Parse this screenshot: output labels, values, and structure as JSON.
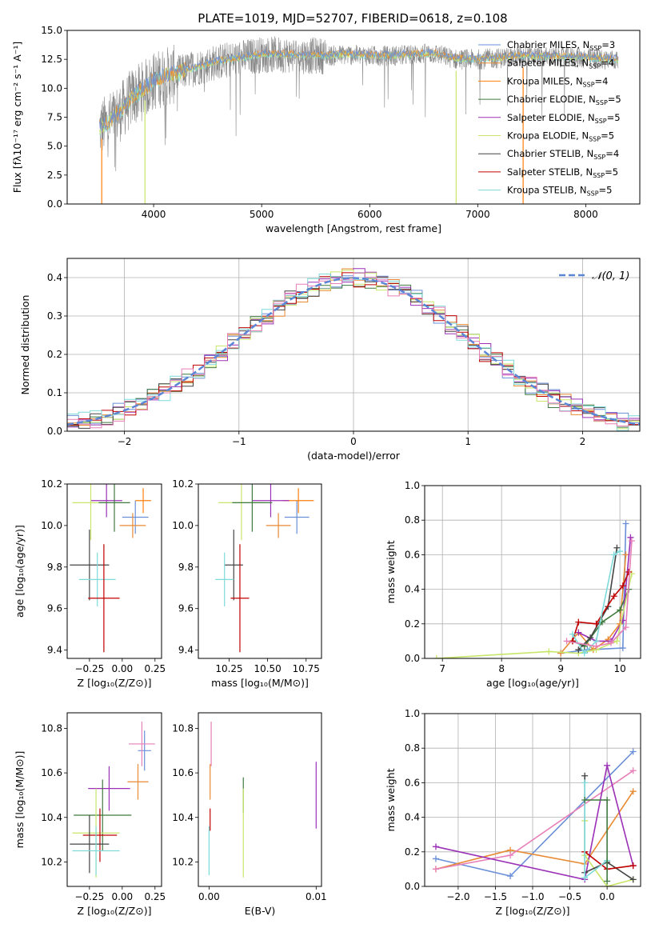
{
  "figure": {
    "title": "PLATE=1019, MJD=52707, FIBERID=0618, z=0.108"
  },
  "series_colors": {
    "Chabrier MILES": "#6a8fd8",
    "Salpeter MILES": "#e88a33",
    "Kroupa MILES": "#ff7f0e",
    "Chabrier ELODIE": "#3f7a3f",
    "Salpeter ELODIE": "#9b30b7",
    "Kroupa ELODIE": "#c8e66a",
    "Chabrier STELIB": "#444444",
    "Salpeter STELIB": "#c00000",
    "Kroupa STELIB": "#7fdada",
    "data": "#888888",
    "gaussian": "#5b86d6",
    "pink": "#e77fb8"
  },
  "chart_data": [
    {
      "id": "spectrum",
      "type": "line",
      "title": "PLATE=1019, MJD=52707, FIBERID=0618, z=0.108",
      "xlabel": "wavelength [Angstrom, rest frame]",
      "ylabel": "Flux [fλ10⁻¹⁷ erg cm⁻² s⁻¹ A⁻¹]",
      "xlim": [
        3200,
        8500
      ],
      "ylim": [
        0,
        15
      ],
      "xticks": [
        "4000",
        "5000",
        "6000",
        "7000",
        "8000"
      ],
      "yticks": [
        "0.0",
        "2.5",
        "5.0",
        "7.5",
        "10.0",
        "12.5",
        "15.0"
      ],
      "legend_placement": "right",
      "legend": [
        "Chabrier MILES, N_SSP=3",
        "Salpeter MILES, N_SSP=4",
        "Kroupa MILES, N_SSP=4",
        "Chabrier ELODIE, N_SSP=5",
        "Salpeter ELODIE, N_SSP=5",
        "Kroupa ELODIE, N_SSP=5",
        "Chabrier STELIB, N_SSP=4",
        "Salpeter STELIB, N_SSP=5",
        "Kroupa STELIB, N_SSP=5"
      ],
      "continuum": [
        [
          3500,
          6.5
        ],
        [
          3600,
          7.2
        ],
        [
          3700,
          8.0
        ],
        [
          3800,
          9.2
        ],
        [
          3900,
          9.8
        ],
        [
          4000,
          10.6
        ],
        [
          4100,
          11.0
        ],
        [
          4200,
          11.2
        ],
        [
          4400,
          11.8
        ],
        [
          4600,
          12.3
        ],
        [
          4800,
          12.6
        ],
        [
          5000,
          12.9
        ],
        [
          5200,
          12.9
        ],
        [
          5400,
          12.8
        ],
        [
          5600,
          12.8
        ],
        [
          5800,
          12.9
        ],
        [
          6000,
          12.8
        ],
        [
          6200,
          12.8
        ],
        [
          6400,
          12.9
        ],
        [
          6600,
          13.0
        ],
        [
          6800,
          12.5
        ],
        [
          7000,
          12.5
        ],
        [
          7200,
          12.6
        ],
        [
          7400,
          12.8
        ],
        [
          7600,
          12.7
        ],
        [
          7800,
          12.7
        ],
        [
          8000,
          12.6
        ],
        [
          8200,
          12.5
        ],
        [
          8300,
          12.4
        ]
      ],
      "drops": [
        {
          "x": 3520,
          "series": "Kroupa MILES"
        },
        {
          "x": 3920,
          "series": "Kroupa ELODIE"
        },
        {
          "x": 6800,
          "series": "Kroupa ELODIE"
        },
        {
          "x": 7420,
          "series": "Kroupa MILES"
        }
      ]
    },
    {
      "id": "residuals",
      "type": "histogram",
      "xlabel": "(data-model)/error",
      "ylabel": "Normed distribution",
      "xlim": [
        -2.5,
        2.5
      ],
      "ylim": [
        0,
        0.45
      ],
      "xticks": [
        "−2",
        "−1",
        "0",
        "1",
        "2"
      ],
      "yticks": [
        "0.0",
        "0.1",
        "0.2",
        "0.3",
        "0.4"
      ],
      "grid": true,
      "legend": [
        "𝒩(0, 1)"
      ],
      "legend_placement": "top-right",
      "bin_width": 0.1
    },
    {
      "id": "age-vs-Z",
      "type": "errorbar",
      "xlabel": "Z [log₁₀(Z/Z⊙)]",
      "ylabel": "age  [log₁₀(age/yr)]",
      "xlim": [
        -0.42,
        0.3
      ],
      "ylim": [
        9.36,
        10.2
      ],
      "xticks": [
        "−0.25",
        "0.00",
        "0.25"
      ],
      "yticks": [
        "9.4",
        "9.6",
        "9.8",
        "10.0",
        "10.2"
      ],
      "points": [
        {
          "series": "Chabrier MILES",
          "x": 0.1,
          "y": 10.04,
          "xerr": 0.1,
          "yerr": 0.08
        },
        {
          "series": "Salpeter MILES",
          "x": 0.08,
          "y": 10.0,
          "xerr": 0.1,
          "yerr": 0.06
        },
        {
          "series": "Kroupa MILES",
          "x": 0.16,
          "y": 10.12,
          "xerr": 0.06,
          "yerr": 0.06
        },
        {
          "series": "Salpeter ELODIE",
          "x": -0.12,
          "y": 10.12,
          "xerr": 0.12,
          "yerr": 0.08
        },
        {
          "series": "Kroupa ELODIE",
          "x": -0.24,
          "y": 10.11,
          "xerr": 0.14,
          "yerr": 0.18
        },
        {
          "series": "Chabrier ELODIE",
          "x": -0.06,
          "y": 10.11,
          "xerr": 0.12,
          "yerr": 0.14
        },
        {
          "series": "Chabrier STELIB",
          "x": -0.25,
          "y": 9.81,
          "xerr": 0.15,
          "yerr": 0.17
        },
        {
          "series": "Kroupa STELIB",
          "x": -0.19,
          "y": 9.74,
          "xerr": 0.14,
          "yerr": 0.13
        },
        {
          "series": "Salpeter STELIB",
          "x": -0.14,
          "y": 9.65,
          "xerr": 0.12,
          "yerr": 0.26
        }
      ]
    },
    {
      "id": "age-vs-mass",
      "type": "errorbar",
      "xlabel": "mass [log₁₀(M/M⊙)]",
      "ylabel": "",
      "xlim": [
        10.05,
        10.85
      ],
      "ylim": [
        9.36,
        10.2
      ],
      "xticks": [
        "10.25",
        "10.50",
        "10.75"
      ],
      "yticks": [
        "9.4",
        "9.6",
        "9.8",
        "10.0",
        "10.2"
      ],
      "points": [
        {
          "series": "Chabrier MILES",
          "x": 10.69,
          "y": 10.04,
          "xerr": 0.08,
          "yerr": 0.08
        },
        {
          "series": "Salpeter MILES",
          "x": 10.57,
          "y": 10.0,
          "xerr": 0.08,
          "yerr": 0.06
        },
        {
          "series": "Kroupa MILES",
          "x": 10.7,
          "y": 10.12,
          "xerr": 0.1,
          "yerr": 0.06
        },
        {
          "series": "Salpeter ELODIE",
          "x": 10.52,
          "y": 10.12,
          "xerr": 0.12,
          "yerr": 0.08
        },
        {
          "series": "Kroupa ELODIE",
          "x": 10.33,
          "y": 10.11,
          "xerr": 0.15,
          "yerr": 0.18
        },
        {
          "series": "Chabrier ELODIE",
          "x": 10.4,
          "y": 10.11,
          "xerr": 0.13,
          "yerr": 0.14
        },
        {
          "series": "Chabrier STELIB",
          "x": 10.28,
          "y": 9.81,
          "xerr": 0.06,
          "yerr": 0.17
        },
        {
          "series": "Kroupa STELIB",
          "x": 10.22,
          "y": 9.74,
          "xerr": 0.06,
          "yerr": 0.13
        },
        {
          "series": "Salpeter STELIB",
          "x": 10.32,
          "y": 9.65,
          "xerr": 0.06,
          "yerr": 0.26
        }
      ]
    },
    {
      "id": "weight-vs-age",
      "type": "line",
      "xlabel": "age  [log₁₀(age/yr)]",
      "ylabel": "mass weight",
      "xlim": [
        6.7,
        10.35
      ],
      "ylim": [
        0,
        1
      ],
      "xticks": [
        "7",
        "8",
        "9",
        "10"
      ],
      "yticks": [
        "0.0",
        "0.2",
        "0.4",
        "0.6",
        "0.8",
        "1.0"
      ],
      "grid": true,
      "series": [
        {
          "series": "Chabrier MILES",
          "points": [
            [
              9.0,
              0.03
            ],
            [
              9.45,
              0.05
            ],
            [
              10.05,
              0.06
            ],
            [
              10.1,
              0.78
            ]
          ]
        },
        {
          "series": "Salpeter MILES",
          "points": [
            [
              9.0,
              0.03
            ],
            [
              9.3,
              0.15
            ],
            [
              9.55,
              0.05
            ],
            [
              9.8,
              0.11
            ],
            [
              10.0,
              0.2
            ],
            [
              10.1,
              0.6
            ]
          ]
        },
        {
          "series": "Chabrier ELODIE",
          "points": [
            [
              9.2,
              0.1
            ],
            [
              9.4,
              0.07
            ],
            [
              9.7,
              0.21
            ],
            [
              10.0,
              0.28
            ],
            [
              10.15,
              0.4
            ]
          ]
        },
        {
          "series": "Salpeter ELODIE",
          "points": [
            [
              9.3,
              0.15
            ],
            [
              9.6,
              0.1
            ],
            [
              9.85,
              0.1
            ],
            [
              10.05,
              0.22
            ],
            [
              10.18,
              0.7
            ]
          ]
        },
        {
          "series": "Kroupa ELODIE",
          "points": [
            [
              6.9,
              0.0
            ],
            [
              8.8,
              0.04
            ],
            [
              9.3,
              0.03
            ],
            [
              9.6,
              0.05
            ],
            [
              9.95,
              0.1
            ],
            [
              10.2,
              0.49
            ]
          ]
        },
        {
          "series": "Chabrier STELIB",
          "points": [
            [
              9.3,
              0.05
            ],
            [
              9.5,
              0.12
            ],
            [
              9.8,
              0.3
            ],
            [
              9.95,
              0.64
            ]
          ]
        },
        {
          "series": "Salpeter STELIB",
          "points": [
            [
              9.2,
              0.1
            ],
            [
              9.3,
              0.21
            ],
            [
              9.6,
              0.2
            ],
            [
              9.9,
              0.36
            ],
            [
              10.05,
              0.42
            ],
            [
              10.15,
              0.5
            ]
          ]
        },
        {
          "series": "Kroupa STELIB",
          "points": [
            [
              9.2,
              0.14
            ],
            [
              9.4,
              0.03
            ],
            [
              9.6,
              0.1
            ],
            [
              9.9,
              0.6
            ],
            [
              10.0,
              0.62
            ]
          ]
        },
        {
          "series": "pink",
          "points": [
            [
              9.1,
              0.1
            ],
            [
              9.6,
              0.07
            ],
            [
              9.85,
              0.09
            ],
            [
              10.1,
              0.18
            ],
            [
              10.2,
              0.68
            ]
          ]
        }
      ]
    },
    {
      "id": "mass-vs-Z",
      "type": "errorbar",
      "xlabel": "Z [log₁₀(Z/Z⊙)]",
      "ylabel": "mass [log₁₀(M/M⊙)]",
      "xlim": [
        -0.42,
        0.3
      ],
      "ylim": [
        10.09,
        10.87
      ],
      "xticks": [
        "−0.25",
        "0.00",
        "0.25"
      ],
      "yticks": [
        "10.2",
        "10.4",
        "10.6",
        "10.8"
      ],
      "points": [
        {
          "series": "Chabrier MILES",
          "x": 0.17,
          "y": 10.7,
          "xerr": 0.05,
          "yerr": 0.09
        },
        {
          "series": "pink",
          "x": 0.15,
          "y": 10.73,
          "xerr": 0.1,
          "yerr": 0.1
        },
        {
          "series": "Salpeter MILES",
          "x": 0.12,
          "y": 10.56,
          "xerr": 0.08,
          "yerr": 0.08
        },
        {
          "series": "Salpeter ELODIE",
          "x": -0.1,
          "y": 10.53,
          "xerr": 0.16,
          "yerr": 0.1
        },
        {
          "series": "Chabrier ELODIE",
          "x": -0.15,
          "y": 10.41,
          "xerr": 0.22,
          "yerr": 0.16
        },
        {
          "series": "Kroupa ELODIE",
          "x": -0.2,
          "y": 10.33,
          "xerr": 0.18,
          "yerr": 0.2
        },
        {
          "series": "Salpeter STELIB",
          "x": -0.17,
          "y": 10.32,
          "xerr": 0.13,
          "yerr": 0.12
        },
        {
          "series": "Chabrier STELIB",
          "x": -0.25,
          "y": 10.28,
          "xerr": 0.15,
          "yerr": 0.13
        },
        {
          "series": "Kroupa STELIB",
          "x": -0.2,
          "y": 10.25,
          "xerr": 0.18,
          "yerr": 0.11
        }
      ]
    },
    {
      "id": "mass-vs-EBV",
      "type": "errorbar",
      "xlabel": "E(B-V)",
      "ylabel": "",
      "xlim": [
        -0.001,
        0.0105
      ],
      "ylim": [
        10.09,
        10.87
      ],
      "xticks": [
        "0.00",
        "0.01"
      ],
      "yticks": [
        "10.2",
        "10.4",
        "10.6",
        "10.8"
      ],
      "points": [
        {
          "series": "pink",
          "x": 0.0002,
          "y": 10.73,
          "xerr": 0,
          "yerr": 0.1
        },
        {
          "series": "Salpeter MILES",
          "x": 0.0001,
          "y": 10.56,
          "xerr": 0,
          "yerr": 0.08
        },
        {
          "series": "Salpeter STELIB",
          "x": 0.0001,
          "y": 10.39,
          "xerr": 0,
          "yerr": 0.05
        },
        {
          "series": "Kroupa STELIB",
          "x": 0.0,
          "y": 10.25,
          "xerr": 0,
          "yerr": 0.11
        },
        {
          "series": "Chabrier ELODIE",
          "x": 0.0032,
          "y": 10.5,
          "xerr": 0,
          "yerr": 0.08
        },
        {
          "series": "Kroupa ELODIE",
          "x": 0.0032,
          "y": 10.33,
          "xerr": 0,
          "yerr": 0.2
        },
        {
          "series": "Salpeter ELODIE",
          "x": 0.01,
          "y": 10.5,
          "xerr": 0,
          "yerr": 0.15
        }
      ]
    },
    {
      "id": "weight-vs-Z",
      "type": "line",
      "xlabel": "Z [log₁₀(Z/Z⊙)]",
      "ylabel": "mass weight",
      "xlim": [
        -2.45,
        0.45
      ],
      "ylim": [
        0,
        1
      ],
      "xticks": [
        "−2.0",
        "−1.5",
        "−1.0",
        "−0.5",
        "0.0"
      ],
      "yticks": [
        "0.0",
        "0.2",
        "0.4",
        "0.6",
        "0.8",
        "1.0"
      ],
      "grid": true,
      "series": [
        {
          "series": "Chabrier MILES",
          "points": [
            [
              -2.3,
              0.16
            ],
            [
              -1.3,
              0.06
            ],
            [
              0.35,
              0.78
            ]
          ]
        },
        {
          "series": "Salpeter MILES",
          "points": [
            [
              -2.3,
              0.1
            ],
            [
              -1.3,
              0.21
            ],
            [
              -0.3,
              0.13
            ],
            [
              0.35,
              0.55
            ]
          ]
        },
        {
          "series": "pink",
          "points": [
            [
              -2.3,
              0.1
            ],
            [
              -1.3,
              0.18
            ],
            [
              0.35,
              0.67
            ]
          ]
        },
        {
          "series": "Salpeter ELODIE",
          "points": [
            [
              -2.3,
              0.23
            ],
            [
              -0.3,
              0.04
            ],
            [
              0.0,
              0.7
            ],
            [
              0.35,
              0.12
            ]
          ]
        },
        {
          "series": "Kroupa ELODIE",
          "points": [
            [
              -0.3,
              0.38
            ],
            [
              -0.3,
              0.18
            ],
            [
              0.0,
              0.0
            ],
            [
              0.35,
              0.04
            ]
          ]
        },
        {
          "series": "Chabrier STELIB",
          "points": [
            [
              -0.3,
              0.64
            ],
            [
              -0.3,
              0.08
            ],
            [
              0.0,
              0.14
            ],
            [
              0.35,
              0.04
            ]
          ]
        },
        {
          "series": "Salpeter STELIB",
          "points": [
            [
              -0.3,
              0.2
            ],
            [
              0.0,
              0.1
            ],
            [
              0.35,
              0.12
            ]
          ]
        },
        {
          "series": "Kroupa STELIB",
          "points": [
            [
              -0.3,
              0.6
            ],
            [
              -0.3,
              0.05
            ],
            [
              0.0,
              0.15
            ]
          ]
        },
        {
          "series": "Chabrier ELODIE",
          "points": [
            [
              -0.3,
              0.5
            ],
            [
              0.0,
              0.5
            ],
            [
              0.0,
              0.03
            ]
          ]
        }
      ]
    }
  ]
}
